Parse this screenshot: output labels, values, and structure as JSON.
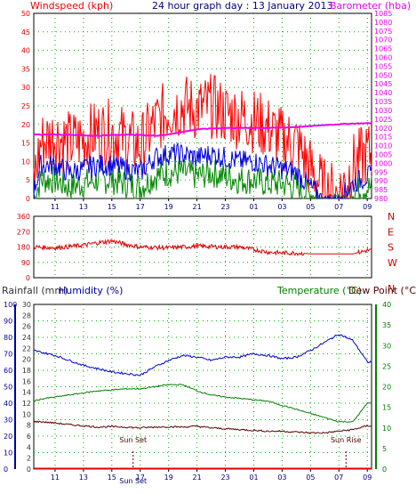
{
  "colors": {
    "windspeed": "#ee0000",
    "barometer": "#ee00ee",
    "gust": "#ff0000",
    "avg_wind": "#0000dd",
    "calm": "#008800",
    "direction": "#dd0000",
    "compass": "#cc0000",
    "humidity_axis": "#0000aa",
    "temperature_axis": "#008000",
    "dewpoint_line": "#550000",
    "grid": "#00aa00",
    "title": "#000080",
    "rain_axis": "#333333"
  },
  "chart_data": [
    {
      "type": "line",
      "name": "wind-barometer",
      "title": "24 hour graph day : 13 January 2013",
      "ylabel_left": "Windspeed (kph)",
      "ylabel_right": "Barometer (hba)",
      "ylim_left": [
        0,
        50
      ],
      "ylim_right": [
        980,
        1085
      ],
      "yticks_left": [
        "0",
        "5",
        "10",
        "15",
        "20",
        "25",
        "30",
        "35",
        "40",
        "45",
        "50"
      ],
      "yticks_right": [
        "980",
        "985",
        "990",
        "995",
        "1000",
        "1005",
        "1010",
        "1015",
        "1020",
        "1025",
        "1030",
        "1035",
        "1040",
        "1045",
        "1050",
        "1055",
        "1060",
        "1065",
        "1070",
        "1075",
        "1080",
        "1085"
      ],
      "x_hours": [
        9.5,
        10,
        11,
        12,
        13,
        14,
        15,
        16,
        17,
        18,
        19,
        20,
        21,
        22,
        23,
        0,
        1,
        2,
        3,
        4,
        5,
        6,
        7,
        8,
        9
      ],
      "xticks": [
        "11",
        "13",
        "15",
        "17",
        "19",
        "21",
        "23",
        "01",
        "03",
        "05",
        "07",
        "09"
      ],
      "grid": true,
      "series": [
        {
          "values": [
            1016.5,
            1016.2,
            1016.3,
            1016.2,
            1015.8,
            1015.6,
            1016.0,
            1016.3,
            1016.0,
            1015.6,
            1016.3,
            1017.8,
            1019.2,
            1019.7,
            1020.0,
            1020.0,
            1020.1,
            1020.0,
            1020.2,
            1020.6,
            1021.0,
            1021.7,
            1022.1,
            1022.5,
            1022.7
          ]
        },
        {
          "values": [
            5,
            15,
            17,
            15,
            16,
            18,
            18,
            16,
            14,
            20,
            24,
            25,
            24,
            25,
            23,
            22,
            21,
            19,
            16,
            15,
            8,
            2,
            1,
            9,
            12
          ]
        },
        {
          "values": [
            2,
            9,
            9,
            7,
            8,
            9,
            9,
            8,
            7,
            11,
            12,
            12,
            11,
            12,
            11,
            10,
            10,
            9,
            8,
            7,
            3,
            0,
            0,
            4,
            6
          ]
        },
        {
          "values": [
            0,
            5,
            5,
            3,
            4,
            5,
            5,
            4,
            3,
            6,
            7,
            7,
            6,
            7,
            6,
            5,
            5,
            4,
            4,
            3,
            1,
            0,
            0,
            2,
            3
          ]
        }
      ]
    },
    {
      "type": "scatter",
      "name": "wind-direction",
      "ylim": [
        0,
        360
      ],
      "yticks": [
        "0",
        "90",
        "180",
        "270",
        "360"
      ],
      "compass_labels": [
        "N",
        "W",
        "S",
        "E",
        "N"
      ],
      "x_hours": [
        9.5,
        11,
        13,
        14,
        15,
        16,
        17,
        19,
        21,
        23,
        0,
        1,
        2,
        3,
        4,
        5,
        6,
        7,
        8,
        9
      ],
      "values": [
        180,
        175,
        190,
        205,
        215,
        195,
        180,
        175,
        185,
        180,
        180,
        165,
        150,
        145,
        145,
        140,
        140,
        140,
        140,
        160
      ],
      "grid": true
    },
    {
      "type": "line",
      "name": "temp-humidity",
      "label_rainfall": "Rainfall (mm)",
      "label_humidity": "Humidity (%)",
      "label_temperature": "Temperature (°C)",
      "label_dewpoint": "Dew Point (°C)",
      "yticks_rain": [
        "0",
        "2",
        "4",
        "6",
        "8",
        "10",
        "12",
        "14",
        "16",
        "18",
        "20",
        "22",
        "24",
        "26",
        "28",
        "30"
      ],
      "yticks_humidity": [
        "0",
        "10",
        "20",
        "30",
        "40",
        "50",
        "60",
        "70",
        "80",
        "90",
        "100"
      ],
      "yticks_temperature": [
        "0",
        "5",
        "10",
        "15",
        "20",
        "25",
        "30",
        "35",
        "40"
      ],
      "ylim_humidity": [
        0,
        100
      ],
      "ylim_temperature": [
        0,
        40
      ],
      "x_hours": [
        9.5,
        10,
        11,
        12,
        13,
        14,
        15,
        16,
        17,
        18,
        19,
        20,
        21,
        22,
        23,
        0,
        1,
        2,
        3,
        4,
        5,
        6,
        7,
        8,
        9
      ],
      "xticks": [
        "11",
        "13",
        "15",
        "17",
        "19",
        "21",
        "23",
        "01",
        "03",
        "05",
        "07",
        "09"
      ],
      "grid": true,
      "series": [
        {
          "values": [
            72,
            71,
            69,
            66,
            63,
            61,
            59,
            58,
            57,
            62,
            66,
            69,
            68,
            66,
            68,
            68,
            70,
            69,
            67,
            68,
            72,
            77,
            82,
            78,
            65
          ]
        },
        {
          "values": [
            16.5,
            17,
            17.5,
            18,
            18.5,
            19,
            19.2,
            19.5,
            19.5,
            20,
            20.5,
            20.5,
            19,
            18,
            17.5,
            17.2,
            16.8,
            16.5,
            15.5,
            14.5,
            13.5,
            12.5,
            11.5,
            11.5,
            16
          ]
        },
        {
          "values": [
            11.5,
            11.5,
            11.2,
            10.8,
            10.5,
            10.2,
            10.3,
            10.2,
            10,
            10.2,
            10.3,
            10.2,
            10.4,
            10,
            9.8,
            9.6,
            9.4,
            9.2,
            9.2,
            9,
            8.8,
            8.8,
            9.2,
            9.6,
            10.5
          ]
        },
        {
          "values": [
            0.1,
            0.1,
            0.1,
            0.1,
            0.1,
            0.1,
            0.1,
            0.1,
            0.1,
            0.1,
            0.1,
            0.1,
            0.1,
            0.1,
            0.1,
            0.1,
            0.1,
            0.1,
            0.1,
            0.1,
            0.1,
            0.1,
            0.1,
            0.1,
            0.1
          ]
        }
      ],
      "annotations": [
        {
          "text": "Sun Set",
          "hour": 16.5
        },
        {
          "text": "Sun Rise",
          "hour": 7.5
        }
      ],
      "bottom_label": "Sun Set"
    }
  ]
}
